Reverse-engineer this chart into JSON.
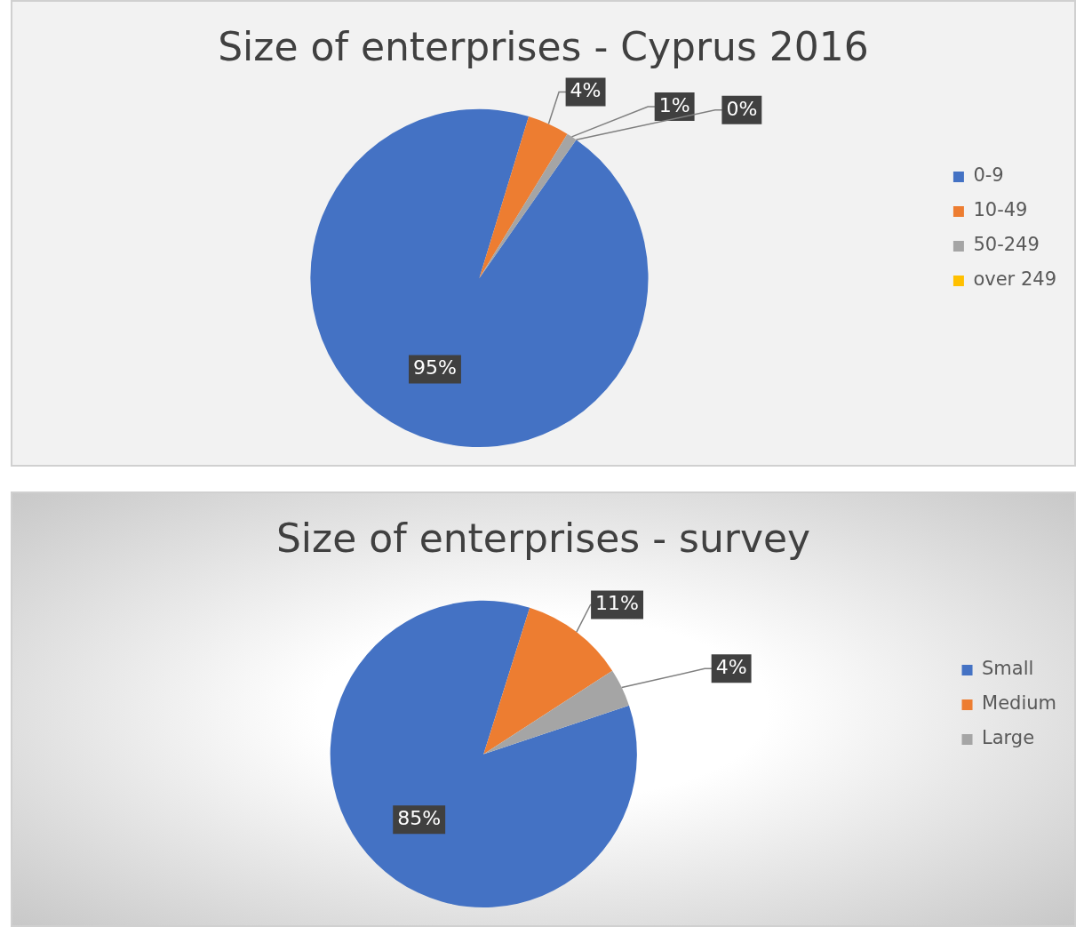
{
  "chart_data": [
    {
      "type": "pie",
      "title": "Size of enterprises - Cyprus 2016",
      "categories": [
        "0-9",
        "10-49",
        "50-249",
        "over 249"
      ],
      "values": [
        95,
        4,
        1,
        0
      ],
      "value_labels": [
        "95%",
        "4%",
        "1%",
        "0%"
      ],
      "colors": [
        "#4472c4",
        "#ed7d31",
        "#a5a5a5",
        "#ffc000"
      ],
      "legend": "right"
    },
    {
      "type": "pie",
      "title": "Size of enterprises - survey",
      "categories": [
        "Small",
        "Medium",
        "Large"
      ],
      "values": [
        85,
        11,
        4
      ],
      "value_labels": [
        "85%",
        "11%",
        "4%"
      ],
      "colors": [
        "#4472c4",
        "#ed7d31",
        "#a5a5a5"
      ],
      "legend": "right"
    }
  ]
}
